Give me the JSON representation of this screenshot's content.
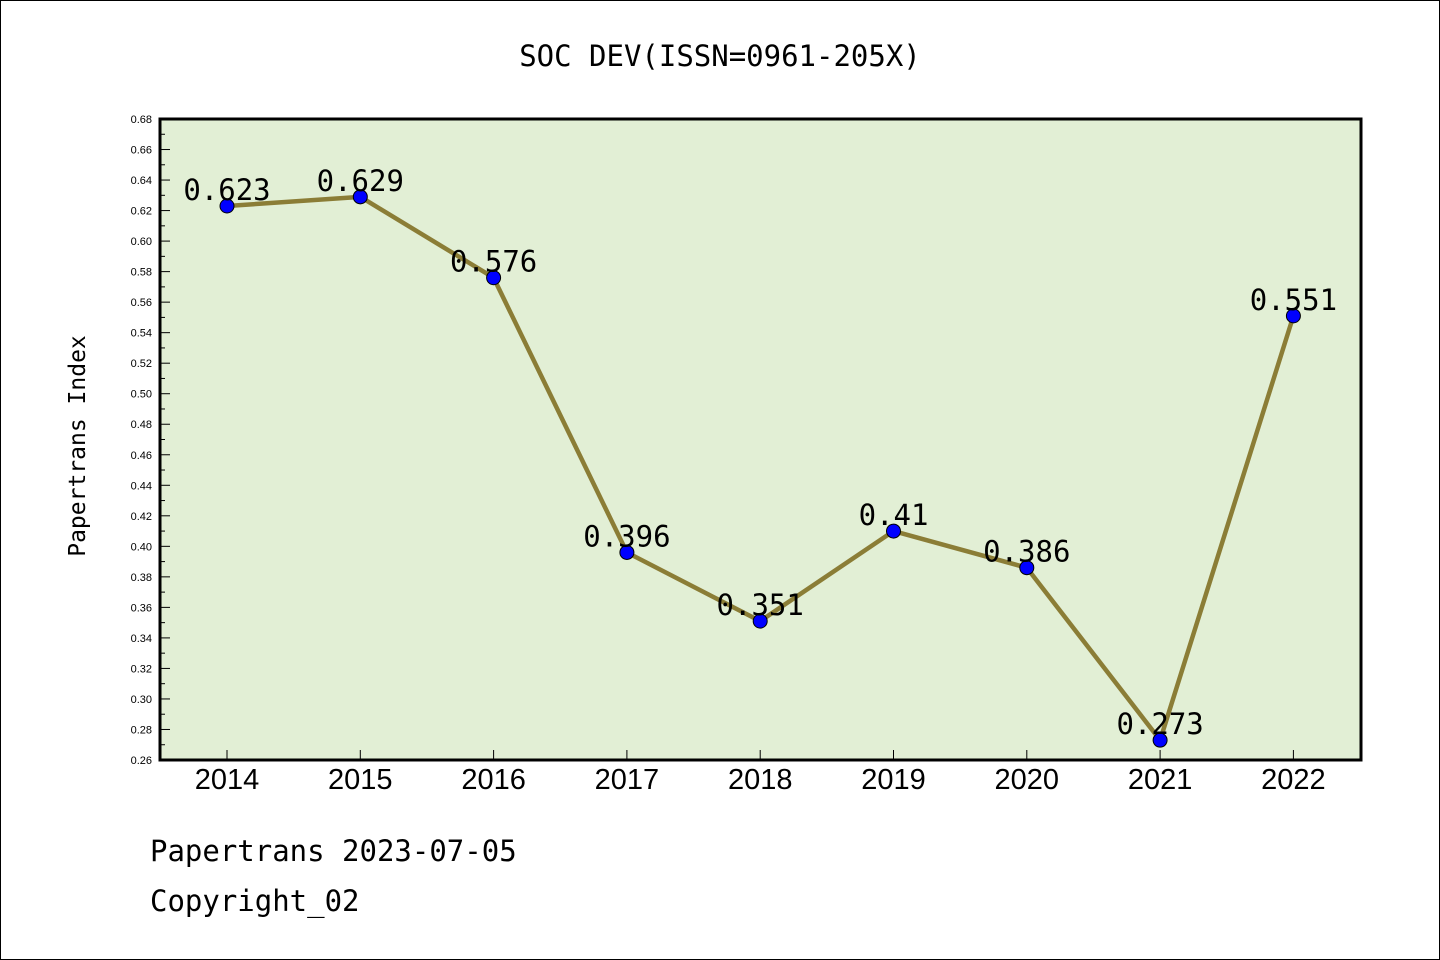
{
  "chart_data": {
    "type": "line",
    "title": "SOC DEV(ISSN=0961-205X)",
    "xlabel": "",
    "ylabel": "Papertrans Index",
    "categories": [
      "2014",
      "2015",
      "2016",
      "2017",
      "2018",
      "2019",
      "2020",
      "2021",
      "2022"
    ],
    "series": [
      {
        "values": [
          0.623,
          0.629,
          0.576,
          0.396,
          0.351,
          0.41,
          0.386,
          0.273,
          0.551
        ],
        "data_labels": [
          "0.623",
          "0.629",
          "0.576",
          "0.396",
          "0.351",
          "0.41",
          "0.386",
          "0.273",
          "0.551"
        ]
      }
    ],
    "ylim": [
      0.26,
      0.68
    ],
    "yticks": [
      "0.26",
      "0.28",
      "0.30",
      "0.32",
      "0.34",
      "0.36",
      "0.38",
      "0.40",
      "0.42",
      "0.44",
      "0.46",
      "0.48",
      "0.50",
      "0.52",
      "0.54",
      "0.56",
      "0.58",
      "0.60",
      "0.62",
      "0.64",
      "0.66",
      "0.68"
    ],
    "grid": false,
    "colors": {
      "plot_background": "#e2efd5",
      "line": "#8b7d36",
      "marker": "#0000ff"
    }
  },
  "footer": {
    "date_line": "Papertrans 2023-07-05",
    "copyright": "Copyright_02"
  }
}
